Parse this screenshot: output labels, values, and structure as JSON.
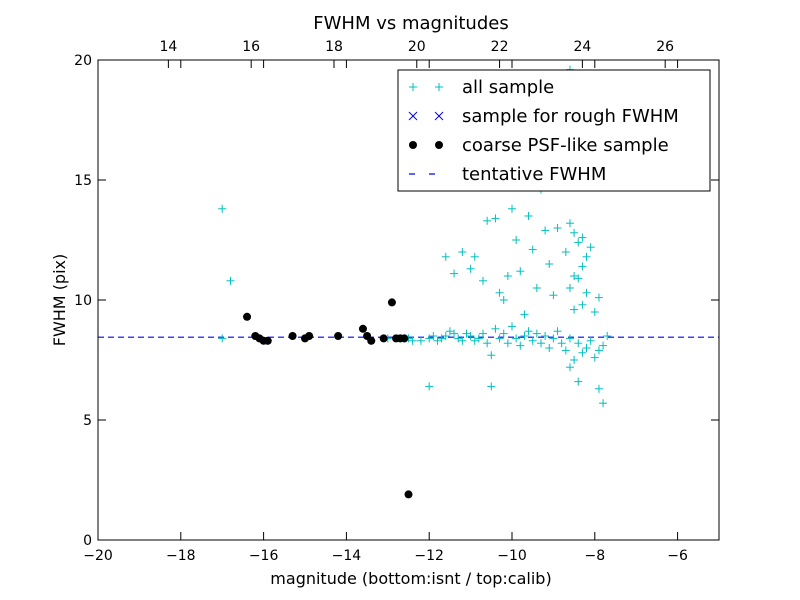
{
  "chart_data": {
    "type": "scatter",
    "title": "FWHM vs magnitudes",
    "xlabel": "magnitude (bottom:isnt / top:calib)",
    "ylabel": "FWHM (pix)",
    "xlim": [
      -20,
      -5
    ],
    "ylim": [
      0,
      20
    ],
    "xticks": [
      -20,
      -18,
      -16,
      -14,
      -12,
      -10,
      -8,
      -6
    ],
    "xtick_labels": [
      "−20",
      "−18",
      "−16",
      "−14",
      "−12",
      "−10",
      "−8",
      "−6"
    ],
    "yticks": [
      0,
      5,
      10,
      15,
      20
    ],
    "ytick_labels": [
      "0",
      "5",
      "10",
      "15",
      "20"
    ],
    "top_axis": {
      "label_offset_from_bottom": 32.3,
      "ticks": [
        14,
        16,
        18,
        20,
        22,
        24,
        26
      ],
      "tick_labels": [
        "14",
        "16",
        "18",
        "20",
        "22",
        "24",
        "26"
      ]
    },
    "grid": false,
    "legend": {
      "position": "top-right",
      "entries": [
        {
          "label": "all sample",
          "marker": "plus",
          "color": "#00bfbf"
        },
        {
          "label": "sample for rough FWHM",
          "marker": "x",
          "color": "#0000ff"
        },
        {
          "label": "coarse PSF-like sample",
          "marker": "circle",
          "color": "#000000"
        },
        {
          "label": "tentative FWHM",
          "marker": "dashed-line",
          "color": "#0000ff"
        }
      ]
    },
    "series": [
      {
        "name": "all sample",
        "marker": "plus",
        "color": "#00bfbf",
        "points": [
          [
            -17.0,
            13.8
          ],
          [
            -16.8,
            10.8
          ],
          [
            -17.0,
            8.4
          ],
          [
            -16.4,
            9.3
          ],
          [
            -16.2,
            8.5
          ],
          [
            -16.1,
            8.4
          ],
          [
            -15.9,
            8.3
          ],
          [
            -15.3,
            8.5
          ],
          [
            -15.0,
            8.4
          ],
          [
            -14.9,
            8.5
          ],
          [
            -14.2,
            8.5
          ],
          [
            -13.6,
            8.8
          ],
          [
            -13.4,
            8.3
          ],
          [
            -13.0,
            8.4
          ],
          [
            -12.9,
            9.9
          ],
          [
            -12.7,
            8.4
          ],
          [
            -12.6,
            8.4
          ],
          [
            -12.5,
            8.4
          ],
          [
            -12.4,
            8.3
          ],
          [
            -12.2,
            8.3
          ],
          [
            -12.0,
            8.4
          ],
          [
            -12.0,
            6.4
          ],
          [
            -11.9,
            8.5
          ],
          [
            -11.8,
            8.3
          ],
          [
            -11.7,
            8.4
          ],
          [
            -11.6,
            8.5
          ],
          [
            -11.5,
            8.7
          ],
          [
            -11.4,
            8.6
          ],
          [
            -11.3,
            8.4
          ],
          [
            -11.2,
            8.3
          ],
          [
            -11.1,
            8.6
          ],
          [
            -11.0,
            8.5
          ],
          [
            -10.9,
            8.3
          ],
          [
            -10.8,
            8.4
          ],
          [
            -10.7,
            8.6
          ],
          [
            -10.6,
            8.2
          ],
          [
            -10.5,
            7.7
          ],
          [
            -10.5,
            6.4
          ],
          [
            -10.4,
            8.8
          ],
          [
            -10.3,
            8.4
          ],
          [
            -10.2,
            8.6
          ],
          [
            -10.1,
            8.2
          ],
          [
            -10.0,
            8.9
          ],
          [
            -9.9,
            8.4
          ],
          [
            -9.8,
            8.1
          ],
          [
            -9.7,
            8.5
          ],
          [
            -9.6,
            8.7
          ],
          [
            -9.5,
            8.3
          ],
          [
            -9.4,
            8.6
          ],
          [
            -9.3,
            8.2
          ],
          [
            -9.2,
            8.5
          ],
          [
            -9.1,
            8.0
          ],
          [
            -9.0,
            8.4
          ],
          [
            -8.9,
            8.7
          ],
          [
            -8.8,
            8.2
          ],
          [
            -8.7,
            7.9
          ],
          [
            -8.6,
            8.4
          ],
          [
            -8.5,
            7.5
          ],
          [
            -8.4,
            8.2
          ],
          [
            -8.3,
            7.8
          ],
          [
            -8.2,
            8.0
          ],
          [
            -8.1,
            8.3
          ],
          [
            -8.0,
            7.6
          ],
          [
            -7.9,
            7.9
          ],
          [
            -7.8,
            8.1
          ],
          [
            -7.7,
            8.5
          ],
          [
            -7.9,
            6.3
          ],
          [
            -7.8,
            5.7
          ],
          [
            -8.4,
            6.6
          ],
          [
            -8.6,
            7.2
          ],
          [
            -11.6,
            11.8
          ],
          [
            -11.4,
            11.1
          ],
          [
            -11.2,
            12.0
          ],
          [
            -11.0,
            11.3
          ],
          [
            -10.9,
            11.8
          ],
          [
            -10.7,
            10.8
          ],
          [
            -10.6,
            13.3
          ],
          [
            -10.4,
            13.4
          ],
          [
            -10.3,
            10.3
          ],
          [
            -10.2,
            10.0
          ],
          [
            -10.1,
            11.0
          ],
          [
            -10.0,
            13.8
          ],
          [
            -9.9,
            12.5
          ],
          [
            -9.8,
            11.2
          ],
          [
            -9.7,
            9.4
          ],
          [
            -9.6,
            13.5
          ],
          [
            -9.5,
            12.1
          ],
          [
            -9.4,
            10.5
          ],
          [
            -9.3,
            14.6
          ],
          [
            -9.2,
            12.9
          ],
          [
            -9.1,
            11.5
          ],
          [
            -9.0,
            10.2
          ],
          [
            -8.9,
            13.0
          ],
          [
            -8.8,
            15.2
          ],
          [
            -8.7,
            14.8
          ],
          [
            -8.7,
            12.0
          ],
          [
            -8.6,
            13.2
          ],
          [
            -8.6,
            10.5
          ],
          [
            -8.5,
            16.7
          ],
          [
            -8.5,
            12.8
          ],
          [
            -8.5,
            11.0
          ],
          [
            -8.5,
            9.6
          ],
          [
            -8.4,
            16.1
          ],
          [
            -8.4,
            12.4
          ],
          [
            -8.4,
            10.9
          ],
          [
            -8.3,
            12.6
          ],
          [
            -8.3,
            11.4
          ],
          [
            -8.3,
            9.8
          ],
          [
            -8.2,
            11.8
          ],
          [
            -8.2,
            10.3
          ],
          [
            -8.1,
            12.2
          ],
          [
            -8.0,
            9.5
          ],
          [
            -7.9,
            10.1
          ],
          [
            -8.6,
            19.6
          ],
          [
            -8.7,
            17.5
          ],
          [
            -8.8,
            18.6
          ],
          [
            -9.0,
            16.0
          ],
          [
            -9.1,
            17.2
          ],
          [
            -9.3,
            15.9
          ]
        ]
      },
      {
        "name": "coarse PSF-like sample",
        "marker": "circle",
        "color": "#000000",
        "points": [
          [
            -16.4,
            9.3
          ],
          [
            -16.2,
            8.5
          ],
          [
            -16.1,
            8.4
          ],
          [
            -16.0,
            8.3
          ],
          [
            -15.9,
            8.3
          ],
          [
            -15.3,
            8.5
          ],
          [
            -15.0,
            8.4
          ],
          [
            -14.9,
            8.5
          ],
          [
            -14.2,
            8.5
          ],
          [
            -13.6,
            8.8
          ],
          [
            -13.5,
            8.5
          ],
          [
            -13.4,
            8.3
          ],
          [
            -13.1,
            8.4
          ],
          [
            -12.9,
            9.9
          ],
          [
            -12.8,
            8.4
          ],
          [
            -12.7,
            8.4
          ],
          [
            -12.6,
            8.4
          ],
          [
            -12.5,
            1.9
          ]
        ]
      }
    ],
    "reference_line": {
      "name": "tentative FWHM",
      "y": 8.45,
      "style": "dashed",
      "color": "#0000ff"
    }
  }
}
